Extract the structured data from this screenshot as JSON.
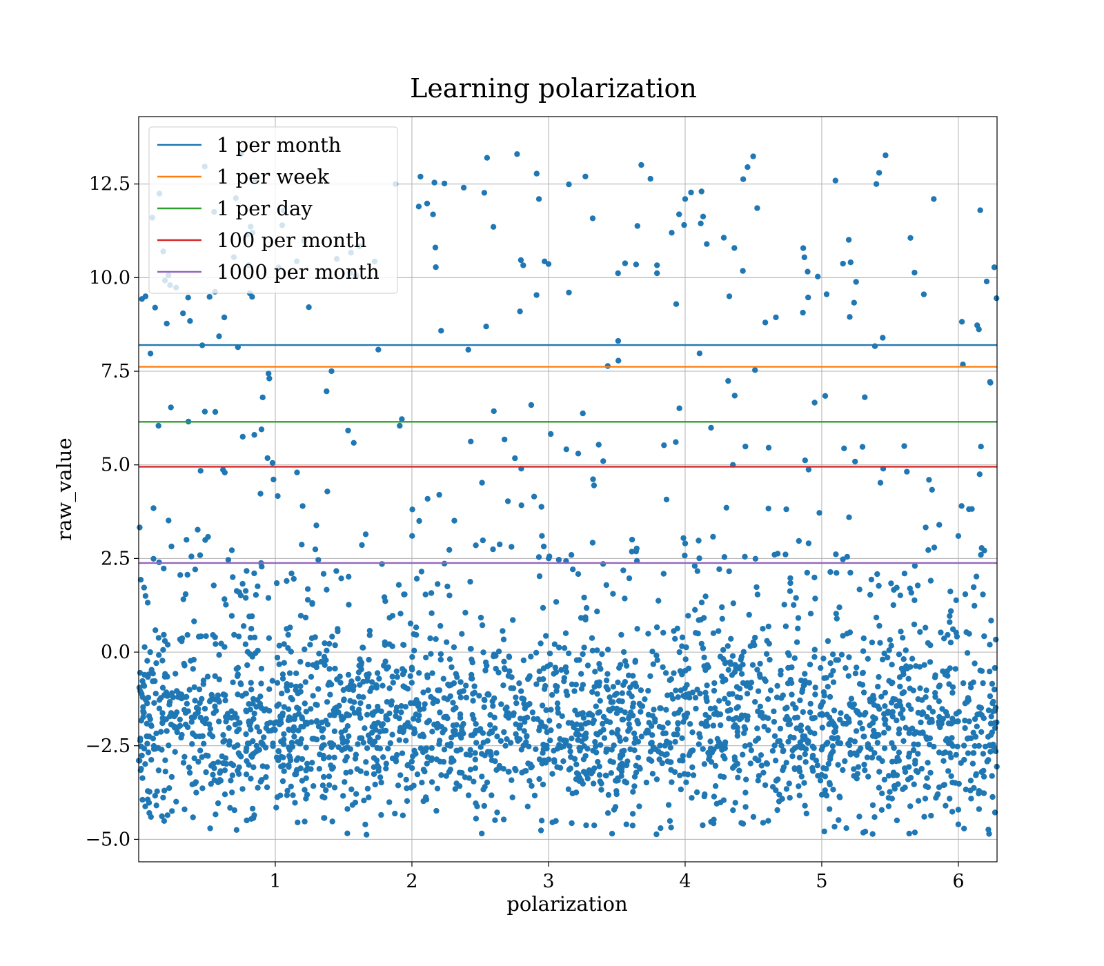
{
  "chart_data": {
    "type": "scatter",
    "title": "Learning polarization",
    "xlabel": "polarization",
    "ylabel": "raw_value",
    "xlim": [
      0.0,
      6.2832
    ],
    "ylim": [
      -5.6,
      14.3
    ],
    "xticks": [
      1,
      2,
      3,
      4,
      5,
      6
    ],
    "xtick_labels": [
      "1",
      "2",
      "3",
      "4",
      "5",
      "6"
    ],
    "yticks": [
      -5.0,
      -2.5,
      0.0,
      2.5,
      5.0,
      7.5,
      10.0,
      12.5
    ],
    "ytick_labels": [
      "−5.0",
      "−2.5",
      "0.0",
      "2.5",
      "5.0",
      "7.5",
      "10.0",
      "12.5"
    ],
    "grid": true,
    "legend_position": "top-left",
    "scatter": {
      "color": "#1f77b4",
      "approx_point_count": 2800,
      "dense_band": {
        "center": -2.0,
        "spread": 1.2,
        "share": 0.82
      },
      "sparse_range": [
        -1.0,
        13.3
      ],
      "sample_points": [
        [
          0.05,
          9.5
        ],
        [
          0.1,
          11.6
        ],
        [
          0.18,
          10.7
        ],
        [
          0.23,
          9.8
        ],
        [
          0.12,
          9.2
        ],
        [
          0.75,
          13.3
        ],
        [
          1.05,
          11.4
        ],
        [
          1.45,
          10.5
        ],
        [
          1.88,
          12.5
        ],
        [
          2.05,
          11.9
        ],
        [
          2.55,
          13.2
        ],
        [
          2.77,
          13.3
        ],
        [
          2.93,
          12.1
        ],
        [
          3.27,
          12.7
        ],
        [
          4.0,
          12.1
        ],
        [
          4.12,
          12.3
        ],
        [
          5.4,
          12.5
        ],
        [
          5.42,
          12.8
        ],
        [
          5.82,
          12.1
        ],
        [
          6.16,
          11.8
        ],
        [
          0.05,
          1.5
        ],
        [
          0.35,
          3.0
        ],
        [
          0.98,
          5.05
        ],
        [
          1.2,
          3.9
        ],
        [
          2.2,
          4.2
        ],
        [
          2.8,
          4.9
        ],
        [
          3.4,
          5.1
        ],
        [
          4.35,
          5.0
        ],
        [
          5.2,
          3.6
        ],
        [
          5.45,
          4.9
        ],
        [
          5.86,
          3.4
        ],
        [
          6.0,
          3.1
        ],
        [
          3.82,
          -4.7
        ],
        [
          5.18,
          -4.7
        ],
        [
          6.0,
          -4.6
        ],
        [
          0.09,
          -4.4
        ],
        [
          2.95,
          -4.5
        ],
        [
          4.5,
          -4.4
        ]
      ]
    },
    "series": [
      {
        "name": "1 per month",
        "type": "hline",
        "y": 8.2,
        "color": "#1f77b4"
      },
      {
        "name": "1 per week",
        "type": "hline",
        "y": 7.62,
        "color": "#ff7f0e"
      },
      {
        "name": "1 per day",
        "type": "hline",
        "y": 6.15,
        "color": "#2ca02c"
      },
      {
        "name": "100 per month",
        "type": "hline",
        "y": 4.95,
        "color": "#d62728"
      },
      {
        "name": "1000 per month",
        "type": "hline",
        "y": 2.38,
        "color": "#9467bd"
      }
    ]
  }
}
